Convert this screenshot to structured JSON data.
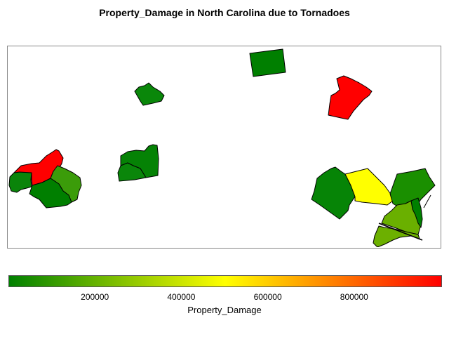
{
  "title": "Property_Damage in North Carolina due to Tornadoes",
  "legend": {
    "label": "Property_Damage",
    "ticks": [
      "200000",
      "400000",
      "600000",
      "800000"
    ],
    "tick_values": [
      200000,
      400000,
      600000,
      800000
    ],
    "min": 0,
    "max": 1000000,
    "colors": [
      "#008000",
      "#FFFF00",
      "#FF0000"
    ]
  },
  "regions": [
    {
      "id": "wn-1",
      "damage": 1000000,
      "color": "#FF0000"
    },
    {
      "id": "wn-2",
      "damage": 60000,
      "color": "#0A840A"
    },
    {
      "id": "wn-3",
      "damage": 130000,
      "color": "#3B9C0A"
    },
    {
      "id": "wn-4",
      "damage": 20000,
      "color": "#007F00"
    },
    {
      "id": "wn-5",
      "damage": 40000,
      "color": "#068406"
    },
    {
      "id": "pd-1",
      "damage": 50000,
      "color": "#0A870A"
    },
    {
      "id": "pd-2",
      "damage": 40000,
      "color": "#058205"
    },
    {
      "id": "pd-3",
      "damage": 50000,
      "color": "#0A860A"
    },
    {
      "id": "pd-4",
      "damage": 20000,
      "color": "#007F00"
    },
    {
      "id": "ne-1",
      "damage": 1000000,
      "color": "#FF0000"
    },
    {
      "id": "ep-1",
      "damage": 40000,
      "color": "#068406"
    },
    {
      "id": "ep-2",
      "damage": 540000,
      "color": "#FFFF00"
    },
    {
      "id": "ep-3",
      "damage": 90000,
      "color": "#1A8F00"
    },
    {
      "id": "ep-4",
      "damage": 240000,
      "color": "#6CB000"
    },
    {
      "id": "ep-5",
      "damage": 230000,
      "color": "#6AB000"
    },
    {
      "id": "ep-6",
      "damage": 30000,
      "color": "#008000"
    }
  ]
}
